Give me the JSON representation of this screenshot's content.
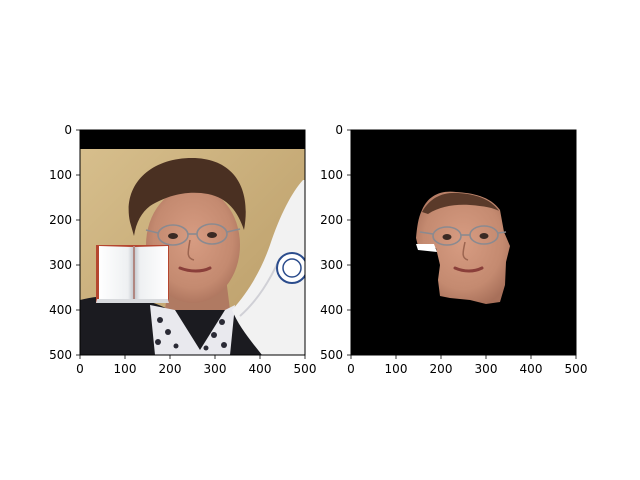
{
  "chart_data": [
    {
      "type": "image",
      "panel": "left",
      "description": "photo of a woman with an open-book icon overlaid on the left cheek and a flag on the right",
      "xlim": [
        0,
        500
      ],
      "ylim": [
        500,
        0
      ],
      "xticks": [
        "0",
        "100",
        "200",
        "300",
        "400",
        "500"
      ],
      "yticks": [
        "0",
        "100",
        "200",
        "300",
        "400",
        "500"
      ],
      "regions": {
        "top_black_band_y": [
          0,
          42
        ],
        "overlay_book_x": [
          35,
          195
        ],
        "overlay_book_y": [
          255,
          383
        ]
      }
    },
    {
      "type": "image",
      "panel": "right",
      "description": "segmented face on black background",
      "xlim": [
        0,
        500
      ],
      "ylim": [
        500,
        0
      ],
      "xticks": [
        "0",
        "100",
        "200",
        "300",
        "400",
        "500"
      ],
      "yticks": [
        "0",
        "100",
        "200",
        "300",
        "400",
        "500"
      ],
      "regions": {
        "face_mask_x": [
          140,
          350
        ],
        "face_mask_y": [
          140,
          385
        ]
      }
    }
  ],
  "colors": {
    "background": "#ffffff",
    "mask_black": "#000000",
    "wall_beige": "#c9b07c",
    "hair": "#4a3022",
    "skin": "#c48a70",
    "jacket": "#1b1b20",
    "flag": "#f2f2f2"
  }
}
